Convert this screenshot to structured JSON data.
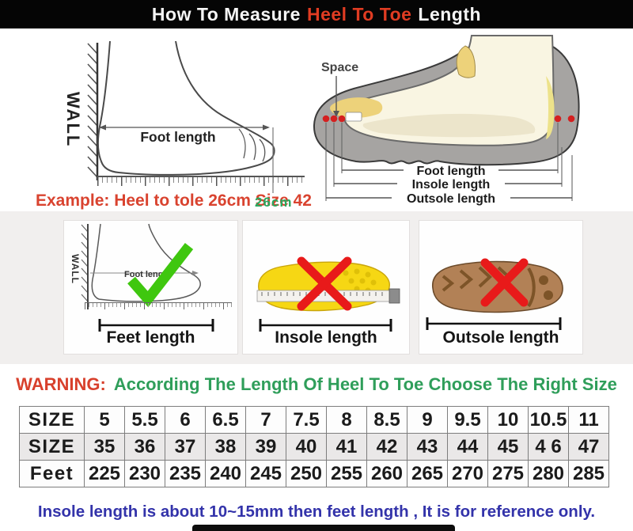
{
  "title": {
    "prefix": "How To Measure",
    "highlight": "Heel To Toe",
    "suffix": "Length"
  },
  "measure_example": {
    "wall_label": "WALL",
    "foot_length_label": "Foot length",
    "example_text": "Example: Heel to tole 26cm Size 42",
    "ruler_reading": "26cm"
  },
  "shoe_diagram": {
    "space_label": "Space",
    "foot_length_label": "Foot length",
    "insole_length_label": "Insole length",
    "outsole_length_label": "Outsole length"
  },
  "method_panels": [
    {
      "caption": "Feet length",
      "verdict": "correct",
      "wall_label": "WALL",
      "arrow_label": "Foot length"
    },
    {
      "caption": "Insole length",
      "verdict": "wrong"
    },
    {
      "caption": "Outsole length",
      "verdict": "wrong"
    }
  ],
  "warning": {
    "label": "WARNING:",
    "message": "According The Length Of Heel To Toe Choose The Right Size"
  },
  "size_table": {
    "rows": [
      {
        "header": "SIZE",
        "values": [
          "5",
          "5.5",
          "6",
          "6.5",
          "7",
          "7.5",
          "8",
          "8.5",
          "9",
          "9.5",
          "10",
          "10.5",
          "11"
        ]
      },
      {
        "header": "SIZE",
        "values": [
          "35",
          "36",
          "37",
          "38",
          "39",
          "40",
          "41",
          "42",
          "43",
          "44",
          "45",
          "4 6",
          "47"
        ]
      },
      {
        "header": "Feet",
        "values": [
          "225",
          "230",
          "235",
          "240",
          "245",
          "250",
          "255",
          "260",
          "265",
          "270",
          "275",
          "280",
          "285"
        ]
      }
    ]
  },
  "footnote": "Insole length is about 10~15mm then feet length , It is for reference only.",
  "colors": {
    "title_highlight": "#e03c22",
    "example_red": "#d9432f",
    "ruler_green": "#2aa85f",
    "warning_red": "#d8402c",
    "warning_green": "#2f9e5a",
    "footnote_blue": "#3333aa",
    "check_green": "#3fc70f",
    "cross_red": "#e81a1a"
  }
}
